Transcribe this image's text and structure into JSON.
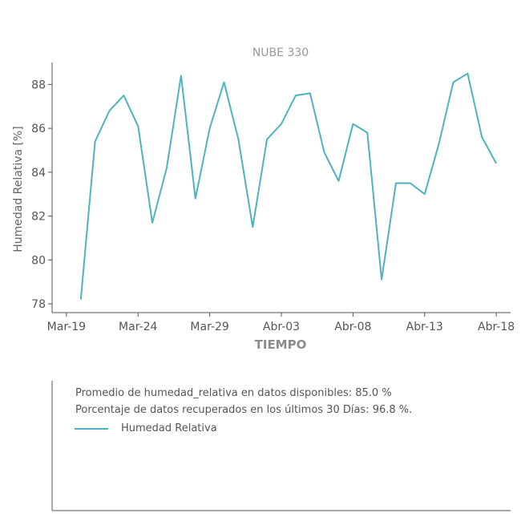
{
  "chart_data": {
    "type": "line",
    "title": "NUBE 330",
    "xlabel": "TIEMPO",
    "ylabel": "Humedad Relativa [%]",
    "ylim": [
      77.6,
      89.0
    ],
    "yticks": [
      78,
      80,
      82,
      84,
      86,
      88
    ],
    "xlim": [
      "2019-03-18",
      "2019-04-19"
    ],
    "xticks": [
      {
        "date": "2019-03-19",
        "label": "Mar-19"
      },
      {
        "date": "2019-03-24",
        "label": "Mar-24"
      },
      {
        "date": "2019-03-29",
        "label": "Mar-29"
      },
      {
        "date": "2019-04-03",
        "label": "Abr-03"
      },
      {
        "date": "2019-04-08",
        "label": "Abr-08"
      },
      {
        "date": "2019-04-13",
        "label": "Abr-13"
      },
      {
        "date": "2019-04-18",
        "label": "Abr-18"
      }
    ],
    "grid": false,
    "series": [
      {
        "name": "Humedad Relativa",
        "color": "#4fb3bf",
        "x": [
          "2019-03-20",
          "2019-03-21",
          "2019-03-22",
          "2019-03-23",
          "2019-03-24",
          "2019-03-25",
          "2019-03-26",
          "2019-03-27",
          "2019-03-28",
          "2019-03-29",
          "2019-03-30",
          "2019-03-31",
          "2019-04-01",
          "2019-04-02",
          "2019-04-03",
          "2019-04-04",
          "2019-04-05",
          "2019-04-06",
          "2019-04-07",
          "2019-04-08",
          "2019-04-09",
          "2019-04-10",
          "2019-04-11",
          "2019-04-12",
          "2019-04-13",
          "2019-04-14",
          "2019-04-15",
          "2019-04-16",
          "2019-04-17",
          "2019-04-18"
        ],
        "values": [
          78.2,
          85.4,
          86.8,
          87.5,
          86.1,
          81.7,
          84.2,
          88.4,
          82.8,
          86.0,
          88.1,
          85.5,
          81.5,
          85.5,
          86.2,
          87.5,
          87.6,
          84.9,
          83.6,
          86.2,
          85.8,
          79.1,
          83.5,
          83.5,
          83.0,
          85.3,
          88.1,
          88.5,
          85.6,
          84.4
        ]
      }
    ]
  },
  "info": {
    "average_text": "Promedio de humedad_relativa en datos disponibles: 85.0 %",
    "recovered_text": "Porcentaje de datos recuperados en los últimos 30 Días: 96.8 %.",
    "legend_label": "Humedad Relativa"
  }
}
